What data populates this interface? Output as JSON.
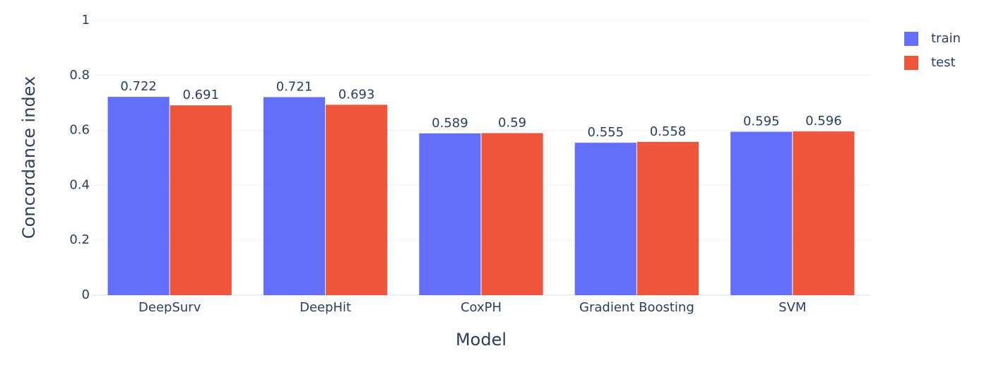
{
  "chart_data": {
    "type": "bar",
    "x_label": "Model",
    "y_label": "Concordance index",
    "categories": [
      "DeepSurv",
      "DeepHit",
      "CoxPH",
      "Gradient Boosting",
      "SVM"
    ],
    "series": [
      {
        "name": "train",
        "color": "#636efa",
        "values": [
          0.722,
          0.721,
          0.589,
          0.555,
          0.595
        ]
      },
      {
        "name": "test",
        "color": "#ef553b",
        "values": [
          0.691,
          0.693,
          0.59,
          0.558,
          0.596
        ]
      }
    ],
    "ylim": [
      0,
      1
    ],
    "yticks": [
      0,
      0.2,
      0.4,
      0.6,
      0.8,
      1
    ],
    "grid": true,
    "legend": "top-right"
  }
}
